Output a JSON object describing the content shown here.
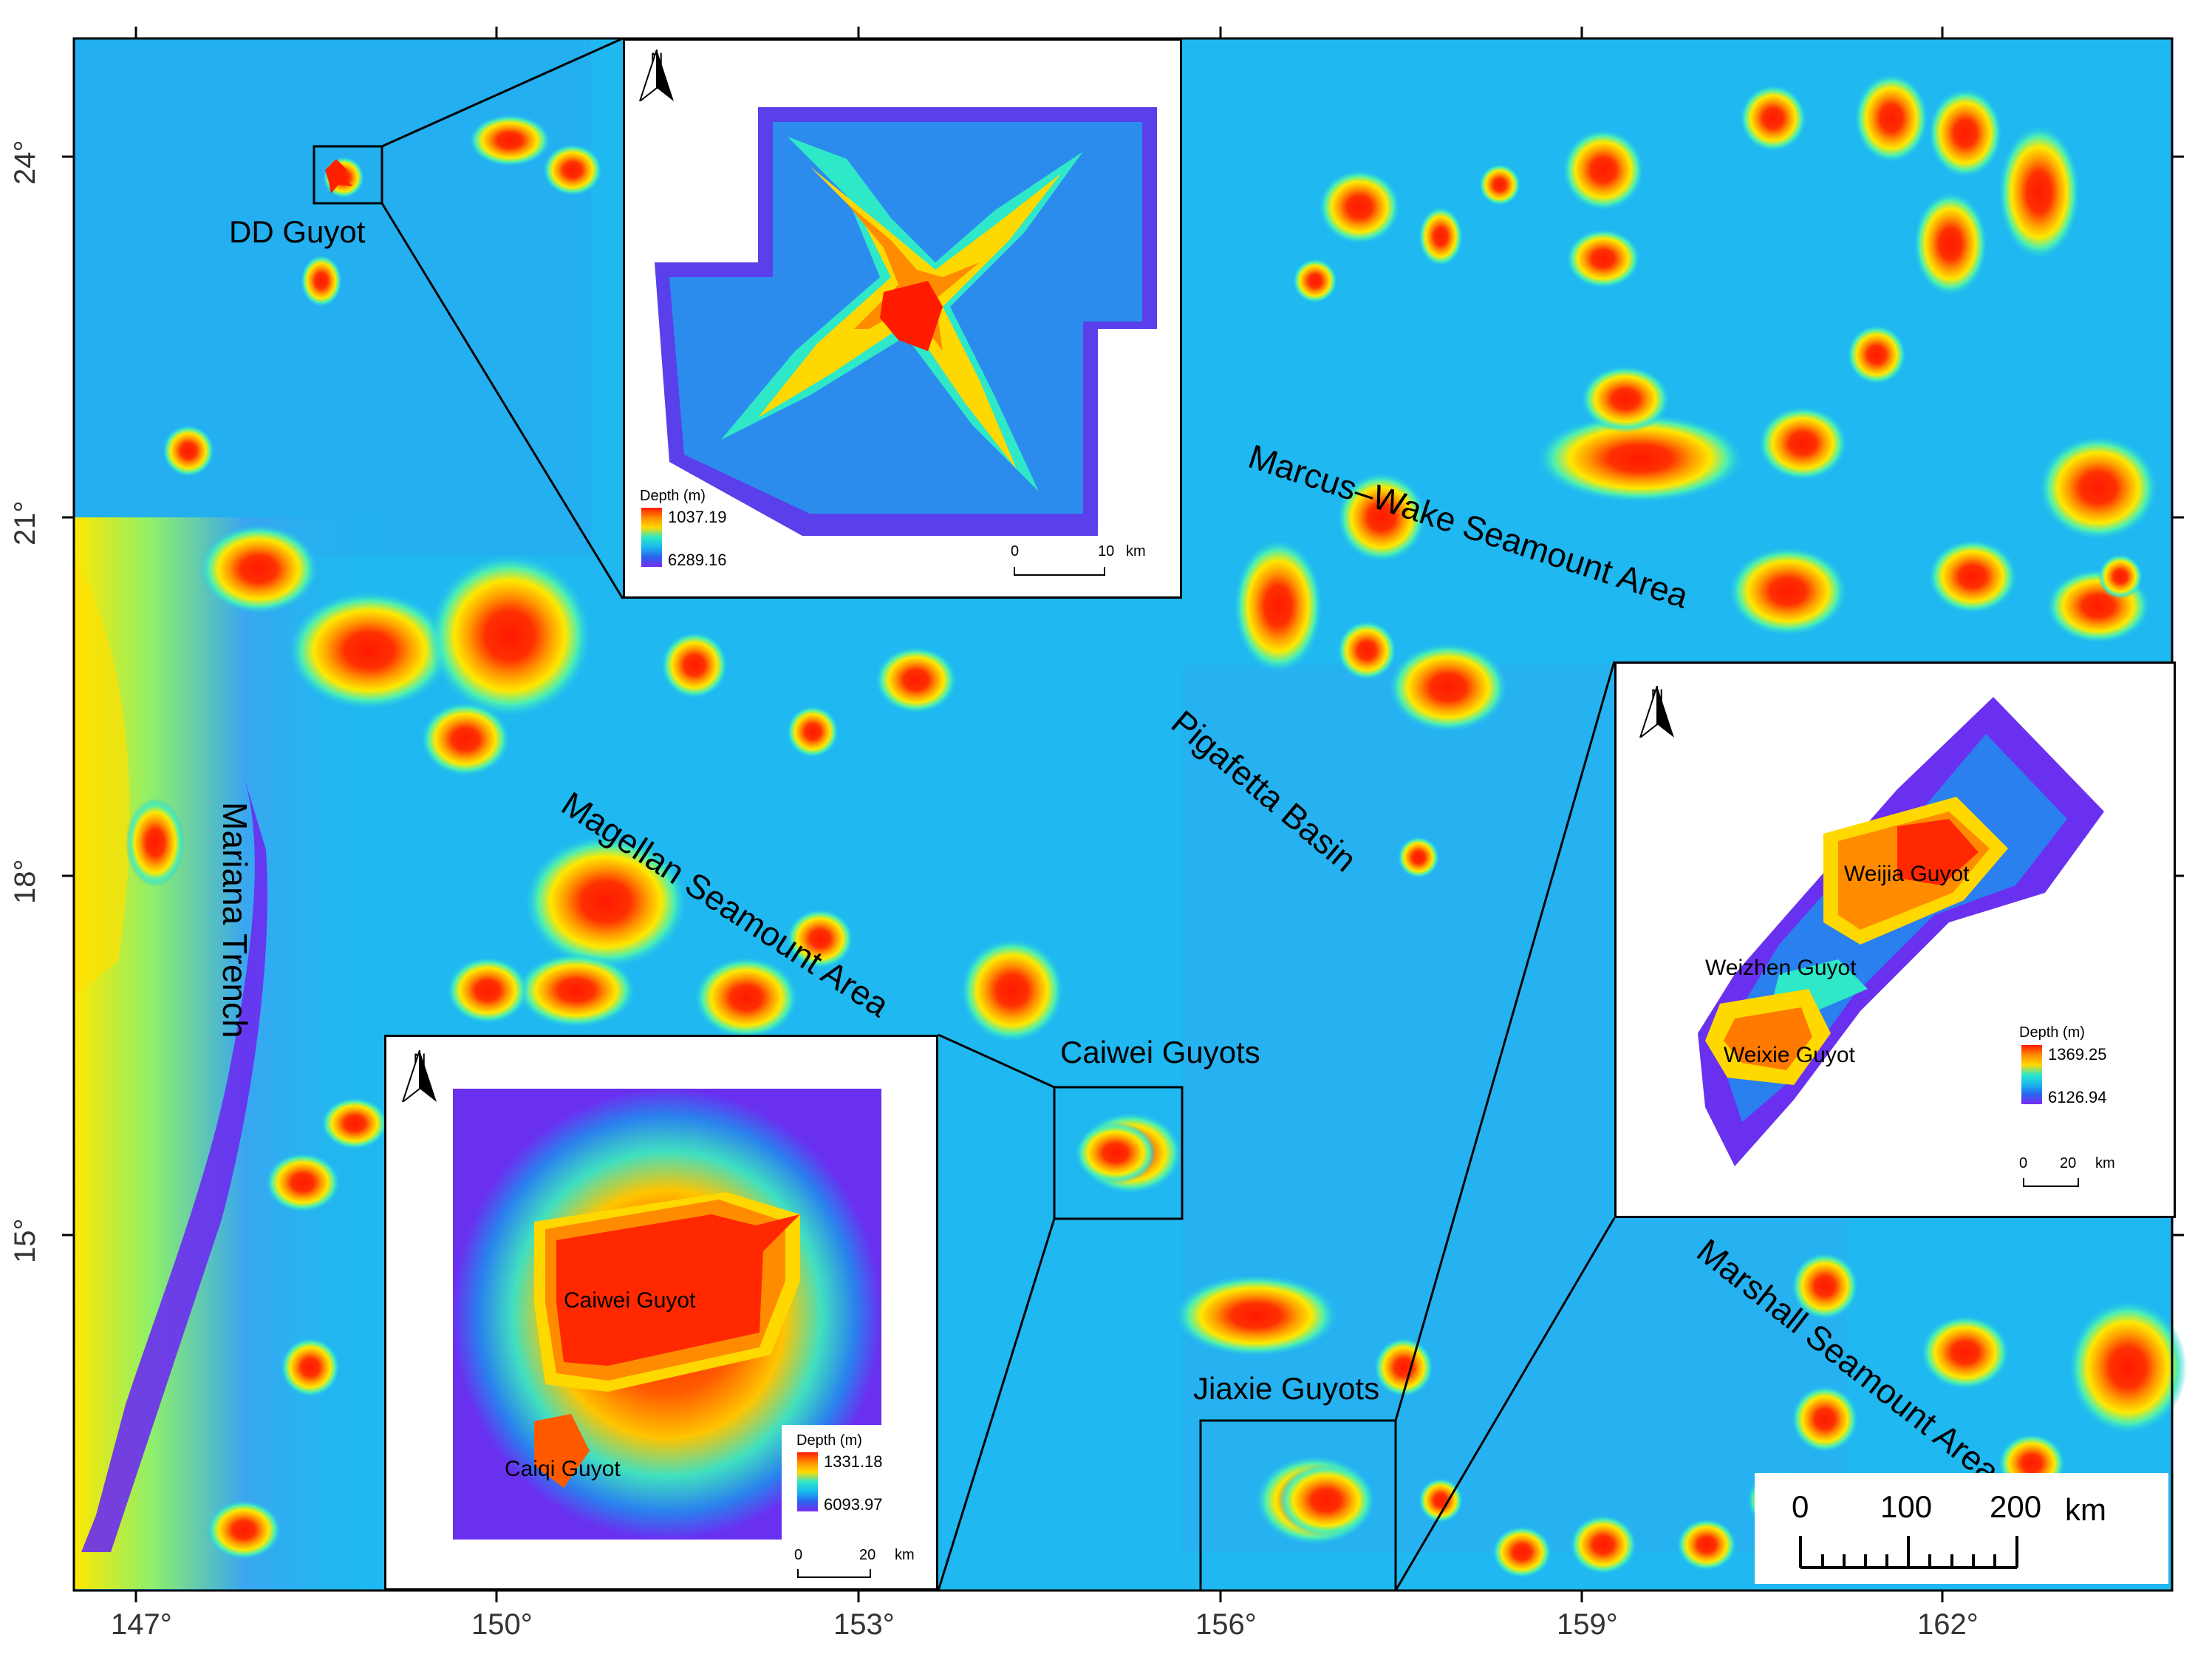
{
  "axes": {
    "x_ticks": [
      "147°",
      "150°",
      "153°",
      "156°",
      "159°",
      "162°"
    ],
    "y_ticks": [
      "24°",
      "21°",
      "18°",
      "15°"
    ]
  },
  "labels": {
    "dd_guyot": "DD Guyot",
    "marcus_wake": "Marcus–Wake Seamount Area",
    "pigafetta": "Pigafetta Basin",
    "magellan": "Magellan Seamount Area",
    "mariana": "Mariana Trench",
    "caiwei_guyots": "Caiwei Guyots",
    "jiaxie_guyots": "Jiaxie Guyots",
    "marshall": "Marshall Seamount Area"
  },
  "main_scale": {
    "ticks": [
      "0",
      "100",
      "200"
    ],
    "unit": "km"
  },
  "insets": {
    "dd": {
      "north": "N",
      "legend_title": "Depth (m)",
      "max": "1037.19",
      "min": "6289.16",
      "scale": [
        "0",
        "10"
      ],
      "unit": "km"
    },
    "caiwei": {
      "north": "N",
      "legend_title": "Depth (m)",
      "max": "1331.18",
      "min": "6093.97",
      "scale": [
        "0",
        "20"
      ],
      "unit": "km",
      "guyot1": "Caiwei Guyot",
      "guyot2": "Caiqi Guyot"
    },
    "jiaxie": {
      "north": "N",
      "legend_title": "Depth (m)",
      "max": "1369.25",
      "min": "6126.94",
      "scale": [
        "0",
        "20"
      ],
      "unit": "km",
      "guyot1": "Weijia Guyot",
      "guyot2": "Weizhen Guyot",
      "guyot3": "Weixie Guyot"
    }
  },
  "colors": {
    "deep": "#6a2cf0",
    "ocean": "#1fb8f0",
    "mid": "#2ee8c8",
    "shallow_yellow": "#ffe000",
    "shallow_orange": "#ff8c00",
    "peak_red": "#ff1a00"
  }
}
